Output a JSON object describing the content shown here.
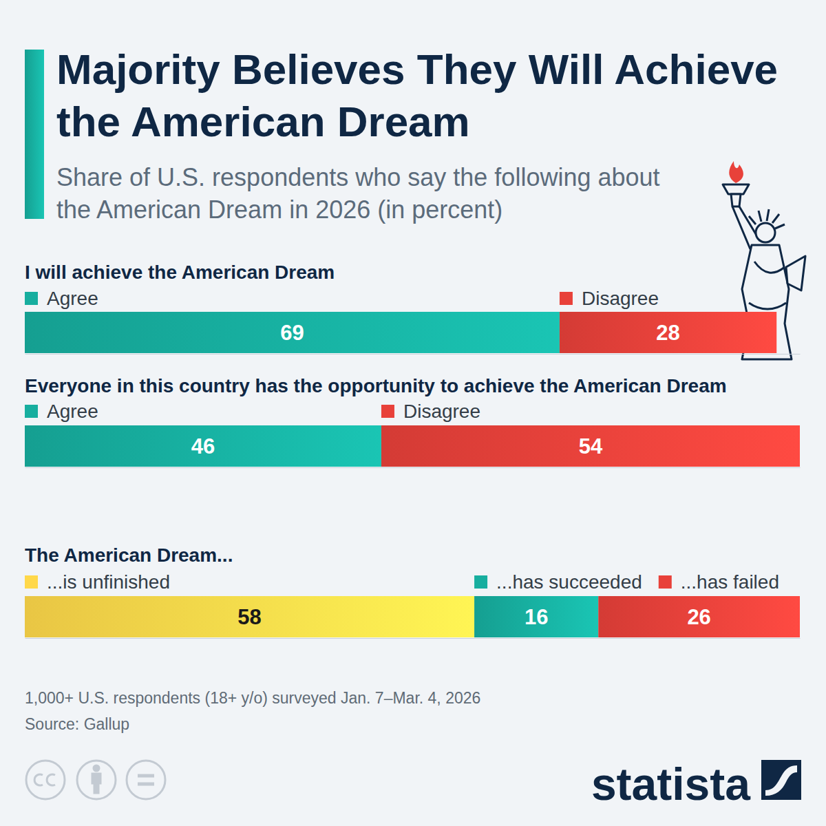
{
  "title": "Majority Believes They Will Achieve the American Dream",
  "subtitle": "Share of U.S. respondents who say the following about the American Dream in 2026 (in percent)",
  "chart_data": [
    {
      "type": "bar",
      "title": "I will achieve the American Dream",
      "orientation": "horizontal",
      "stacked": true,
      "data_labels": true,
      "tick_labels": false,
      "legend": "top",
      "xlim": [
        0,
        100
      ],
      "series": [
        {
          "name": "Agree",
          "color": "#17ae9f",
          "values": [
            69
          ]
        },
        {
          "name": "Disagree",
          "color": "#e8413a",
          "values": [
            28
          ]
        }
      ]
    },
    {
      "type": "bar",
      "title": "Everyone in this country has the opportunity to achieve the American Dream",
      "orientation": "horizontal",
      "stacked": true,
      "data_labels": true,
      "tick_labels": false,
      "legend": "top",
      "xlim": [
        0,
        100
      ],
      "series": [
        {
          "name": "Agree",
          "color": "#17ae9f",
          "values": [
            46
          ]
        },
        {
          "name": "Disagree",
          "color": "#e8413a",
          "values": [
            54
          ]
        }
      ]
    },
    {
      "type": "bar",
      "title": "The American Dream...",
      "orientation": "horizontal",
      "stacked": true,
      "data_labels": true,
      "tick_labels": false,
      "legend": "top",
      "xlim": [
        0,
        100
      ],
      "series": [
        {
          "name": "...is unfinished",
          "color": "#ffd84a",
          "values": [
            58
          ]
        },
        {
          "name": "...has succeeded",
          "color": "#17ae9f",
          "values": [
            16
          ]
        },
        {
          "name": "...has failed",
          "color": "#e8413a",
          "values": [
            26
          ]
        }
      ]
    }
  ],
  "note": "1,000+ U.S. respondents (18+ y/o) surveyed Jan. 7–Mar. 4, 2026",
  "source": "Source: Gallup",
  "brand": "statista"
}
